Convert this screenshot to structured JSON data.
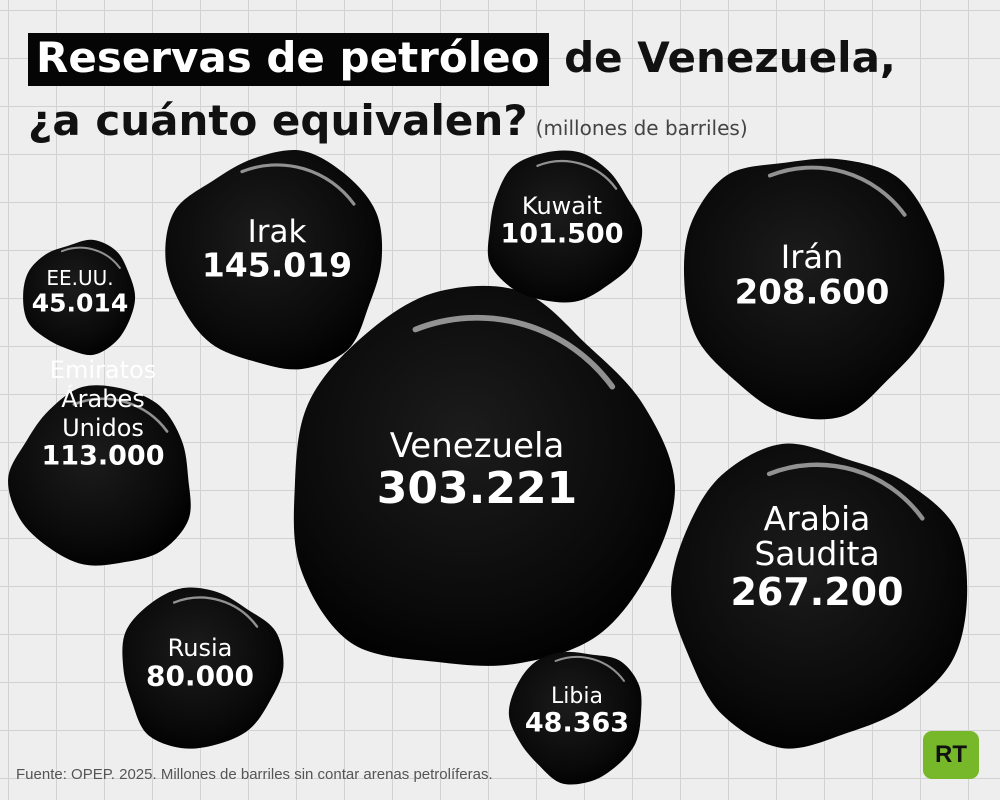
{
  "header": {
    "title_highlight": "Reservas de petróleo",
    "title_rest": "de Venezuela,",
    "title_line2": "¿a cuánto equivalen?",
    "subtitle": "(millones de barriles)"
  },
  "chart_data": {
    "type": "bubble",
    "title": "Reservas de petróleo de Venezuela, ¿a cuánto equivalen?",
    "unit": "(millones de barriles)",
    "series": [
      {
        "name": "Venezuela",
        "label_lines": [
          "Venezuela"
        ],
        "value": 303221,
        "value_label": "303.221"
      },
      {
        "name": "Arabia Saudita",
        "label_lines": [
          "Arabia",
          "Saudita"
        ],
        "value": 267200,
        "value_label": "267.200"
      },
      {
        "name": "Irán",
        "label_lines": [
          "Irán"
        ],
        "value": 208600,
        "value_label": "208.600"
      },
      {
        "name": "Irak",
        "label_lines": [
          "Irak"
        ],
        "value": 145019,
        "value_label": "145.019"
      },
      {
        "name": "Emiratos Árabes Unidos",
        "label_lines": [
          "Emiratos",
          "Árabes",
          "Unidos"
        ],
        "value": 113000,
        "value_label": "113.000"
      },
      {
        "name": "Kuwait",
        "label_lines": [
          "Kuwait"
        ],
        "value": 101500,
        "value_label": "101.500"
      },
      {
        "name": "Rusia",
        "label_lines": [
          "Rusia"
        ],
        "value": 80000,
        "value_label": "80.000"
      },
      {
        "name": "Libia",
        "label_lines": [
          "Libia"
        ],
        "value": 48363,
        "value_label": "48.363"
      },
      {
        "name": "EE.UU.",
        "label_lines": [
          "EE.UU."
        ],
        "value": 45014,
        "value_label": "45.014"
      }
    ],
    "colors": {
      "blob": "#0a0a0a",
      "highlight": "#ffffff",
      "text": "#ffffff"
    }
  },
  "footer": {
    "source": "Fuente: OPEP. 2025. Millones de barriles sin contar arenas petrolíferas."
  },
  "logo": {
    "text": "RT",
    "color": "#77b82a"
  }
}
